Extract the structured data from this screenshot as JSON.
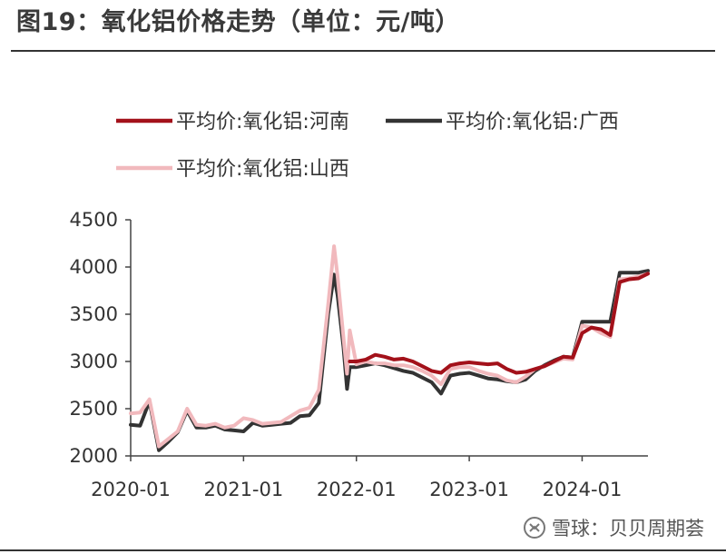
{
  "header": {
    "title": "图19：氧化铝价格走势（单位：元/吨）"
  },
  "watermark": {
    "text": "雪球：贝贝周期荟",
    "icon": "snowball-logo-icon"
  },
  "chart_data": {
    "type": "line",
    "title": "图19：氧化铝价格走势（单位：元/吨）",
    "xlabel": "",
    "ylabel": "",
    "ylim": [
      2000,
      4500
    ],
    "yticks": [
      2000,
      2500,
      3000,
      3500,
      4000,
      4500
    ],
    "xticks": [
      "2020-01",
      "2021-01",
      "2022-01",
      "2023-01",
      "2024-01"
    ],
    "xlim": [
      "2020-01",
      "2024-08"
    ],
    "grid": false,
    "legend": "top",
    "series": [
      {
        "name": "平均价:氧化铝:河南",
        "color": "#a3111a",
        "points": [
          [
            "2021-12-10",
            3000
          ],
          [
            "2022-01",
            3000
          ],
          [
            "2022-02",
            3020
          ],
          [
            "2022-03",
            3070
          ],
          [
            "2022-04",
            3050
          ],
          [
            "2022-05",
            3020
          ],
          [
            "2022-06",
            3030
          ],
          [
            "2022-07",
            3000
          ],
          [
            "2022-08",
            2950
          ],
          [
            "2022-09",
            2900
          ],
          [
            "2022-10",
            2880
          ],
          [
            "2022-11",
            2960
          ],
          [
            "2022-12",
            2980
          ],
          [
            "2023-01",
            2990
          ],
          [
            "2023-02",
            2980
          ],
          [
            "2023-03",
            2970
          ],
          [
            "2023-04",
            2980
          ],
          [
            "2023-05",
            2920
          ],
          [
            "2023-06",
            2880
          ],
          [
            "2023-07",
            2890
          ],
          [
            "2023-08",
            2920
          ],
          [
            "2023-09",
            2950
          ],
          [
            "2023-10",
            3000
          ],
          [
            "2023-11",
            3050
          ],
          [
            "2023-12",
            3040
          ],
          [
            "2024-01",
            3300
          ],
          [
            "2024-02",
            3360
          ],
          [
            "2024-03",
            3340
          ],
          [
            "2024-04",
            3280
          ],
          [
            "2024-05",
            3840
          ],
          [
            "2024-06",
            3870
          ],
          [
            "2024-07",
            3880
          ],
          [
            "2024-08",
            3930
          ]
        ]
      },
      {
        "name": "平均价:氧化铝:广西",
        "color": "#333333",
        "points": [
          [
            "2020-01",
            2330
          ],
          [
            "2020-02",
            2320
          ],
          [
            "2020-03",
            2580
          ],
          [
            "2020-04",
            2060
          ],
          [
            "2020-05",
            2150
          ],
          [
            "2020-06",
            2250
          ],
          [
            "2020-07",
            2480
          ],
          [
            "2020-08",
            2300
          ],
          [
            "2020-09",
            2300
          ],
          [
            "2020-10",
            2320
          ],
          [
            "2020-11",
            2280
          ],
          [
            "2020-12",
            2270
          ],
          [
            "2021-01",
            2260
          ],
          [
            "2021-02",
            2350
          ],
          [
            "2021-03",
            2320
          ],
          [
            "2021-04",
            2330
          ],
          [
            "2021-05",
            2340
          ],
          [
            "2021-06",
            2350
          ],
          [
            "2021-07",
            2420
          ],
          [
            "2021-08",
            2430
          ],
          [
            "2021-09",
            2560
          ],
          [
            "2021-10",
            3500
          ],
          [
            "2021-10-20",
            3920
          ],
          [
            "2021-11",
            3700
          ],
          [
            "2021-11-20",
            3150
          ],
          [
            "2021-12",
            2710
          ],
          [
            "2021-12-10",
            2940
          ],
          [
            "2022-01",
            2940
          ],
          [
            "2022-02",
            2960
          ],
          [
            "2022-03",
            2980
          ],
          [
            "2022-04",
            2960
          ],
          [
            "2022-05",
            2930
          ],
          [
            "2022-06",
            2900
          ],
          [
            "2022-07",
            2880
          ],
          [
            "2022-08",
            2830
          ],
          [
            "2022-09",
            2780
          ],
          [
            "2022-10",
            2660
          ],
          [
            "2022-11",
            2850
          ],
          [
            "2022-12",
            2870
          ],
          [
            "2023-01",
            2880
          ],
          [
            "2023-02",
            2850
          ],
          [
            "2023-03",
            2820
          ],
          [
            "2023-04",
            2810
          ],
          [
            "2023-05",
            2790
          ],
          [
            "2023-06",
            2780
          ],
          [
            "2023-07",
            2810
          ],
          [
            "2023-08",
            2900
          ],
          [
            "2023-09",
            2960
          ],
          [
            "2023-10",
            3010
          ],
          [
            "2023-11",
            3050
          ],
          [
            "2023-12",
            3040
          ],
          [
            "2024-01",
            3420
          ],
          [
            "2024-02",
            3420
          ],
          [
            "2024-03",
            3420
          ],
          [
            "2024-04",
            3420
          ],
          [
            "2024-05",
            3940
          ],
          [
            "2024-06",
            3940
          ],
          [
            "2024-07",
            3940
          ],
          [
            "2024-08",
            3960
          ]
        ]
      },
      {
        "name": "平均价:氧化铝:山西",
        "color": "#f1b9bd",
        "points": [
          [
            "2020-01",
            2450
          ],
          [
            "2020-02",
            2460
          ],
          [
            "2020-03",
            2600
          ],
          [
            "2020-04",
            2100
          ],
          [
            "2020-05",
            2180
          ],
          [
            "2020-06",
            2260
          ],
          [
            "2020-07",
            2500
          ],
          [
            "2020-08",
            2330
          ],
          [
            "2020-09",
            2320
          ],
          [
            "2020-10",
            2340
          ],
          [
            "2020-11",
            2300
          ],
          [
            "2020-12",
            2320
          ],
          [
            "2021-01",
            2400
          ],
          [
            "2021-02",
            2380
          ],
          [
            "2021-03",
            2340
          ],
          [
            "2021-04",
            2350
          ],
          [
            "2021-05",
            2360
          ],
          [
            "2021-06",
            2420
          ],
          [
            "2021-07",
            2480
          ],
          [
            "2021-08",
            2510
          ],
          [
            "2021-09",
            2700
          ],
          [
            "2021-10",
            3600
          ],
          [
            "2021-10-20",
            4220
          ],
          [
            "2021-11",
            3900
          ],
          [
            "2021-11-20",
            3250
          ],
          [
            "2021-12",
            2870
          ],
          [
            "2021-12-10",
            3330
          ],
          [
            "2022-01",
            2970
          ],
          [
            "2022-02",
            3000
          ],
          [
            "2022-03",
            2980
          ],
          [
            "2022-04",
            2980
          ],
          [
            "2022-05",
            2960
          ],
          [
            "2022-06",
            2960
          ],
          [
            "2022-07",
            2940
          ],
          [
            "2022-08",
            2900
          ],
          [
            "2022-09",
            2850
          ],
          [
            "2022-10",
            2760
          ],
          [
            "2022-11",
            2920
          ],
          [
            "2022-12",
            2940
          ],
          [
            "2023-01",
            2940
          ],
          [
            "2023-02",
            2900
          ],
          [
            "2023-03",
            2870
          ],
          [
            "2023-04",
            2850
          ],
          [
            "2023-05",
            2800
          ],
          [
            "2023-06",
            2780
          ],
          [
            "2023-07",
            2840
          ],
          [
            "2023-08",
            2920
          ],
          [
            "2023-09",
            2950
          ],
          [
            "2023-10",
            2990
          ],
          [
            "2023-11",
            3030
          ],
          [
            "2023-12",
            3020
          ],
          [
            "2024-01",
            3380
          ],
          [
            "2024-02",
            3360
          ],
          [
            "2024-03",
            3300
          ],
          [
            "2024-04",
            3260
          ],
          [
            "2024-05",
            3870
          ],
          [
            "2024-06",
            3880
          ],
          [
            "2024-07",
            3900
          ],
          [
            "2024-08",
            3930
          ]
        ]
      }
    ]
  }
}
